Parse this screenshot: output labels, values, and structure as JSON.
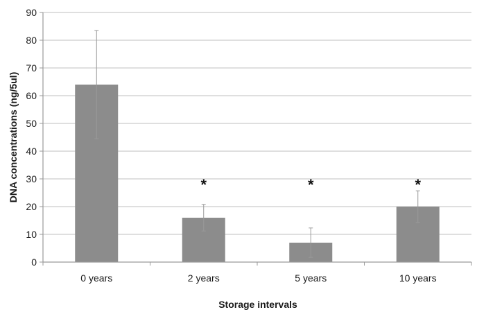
{
  "chart_data": {
    "type": "bar",
    "title": "",
    "xlabel": "Storage intervals",
    "ylabel": "DNA concentrations (ng/5ul)",
    "categories": [
      "0 years",
      "2 years",
      "5 years",
      "10 years"
    ],
    "values": [
      64,
      16,
      7,
      20
    ],
    "error_bars": [
      19.5,
      4.8,
      5.3,
      5.7
    ],
    "significance_labels": [
      "",
      "*",
      "*",
      "*"
    ],
    "ylim": [
      0,
      90
    ],
    "yticks": [
      0,
      10,
      20,
      30,
      40,
      50,
      60,
      70,
      80,
      90
    ],
    "grid": true,
    "legend": "none",
    "colors": {
      "bar": "#8c8c8c",
      "grid": "#cccccc",
      "axis": "#999999",
      "error_bar": "#999999"
    }
  }
}
